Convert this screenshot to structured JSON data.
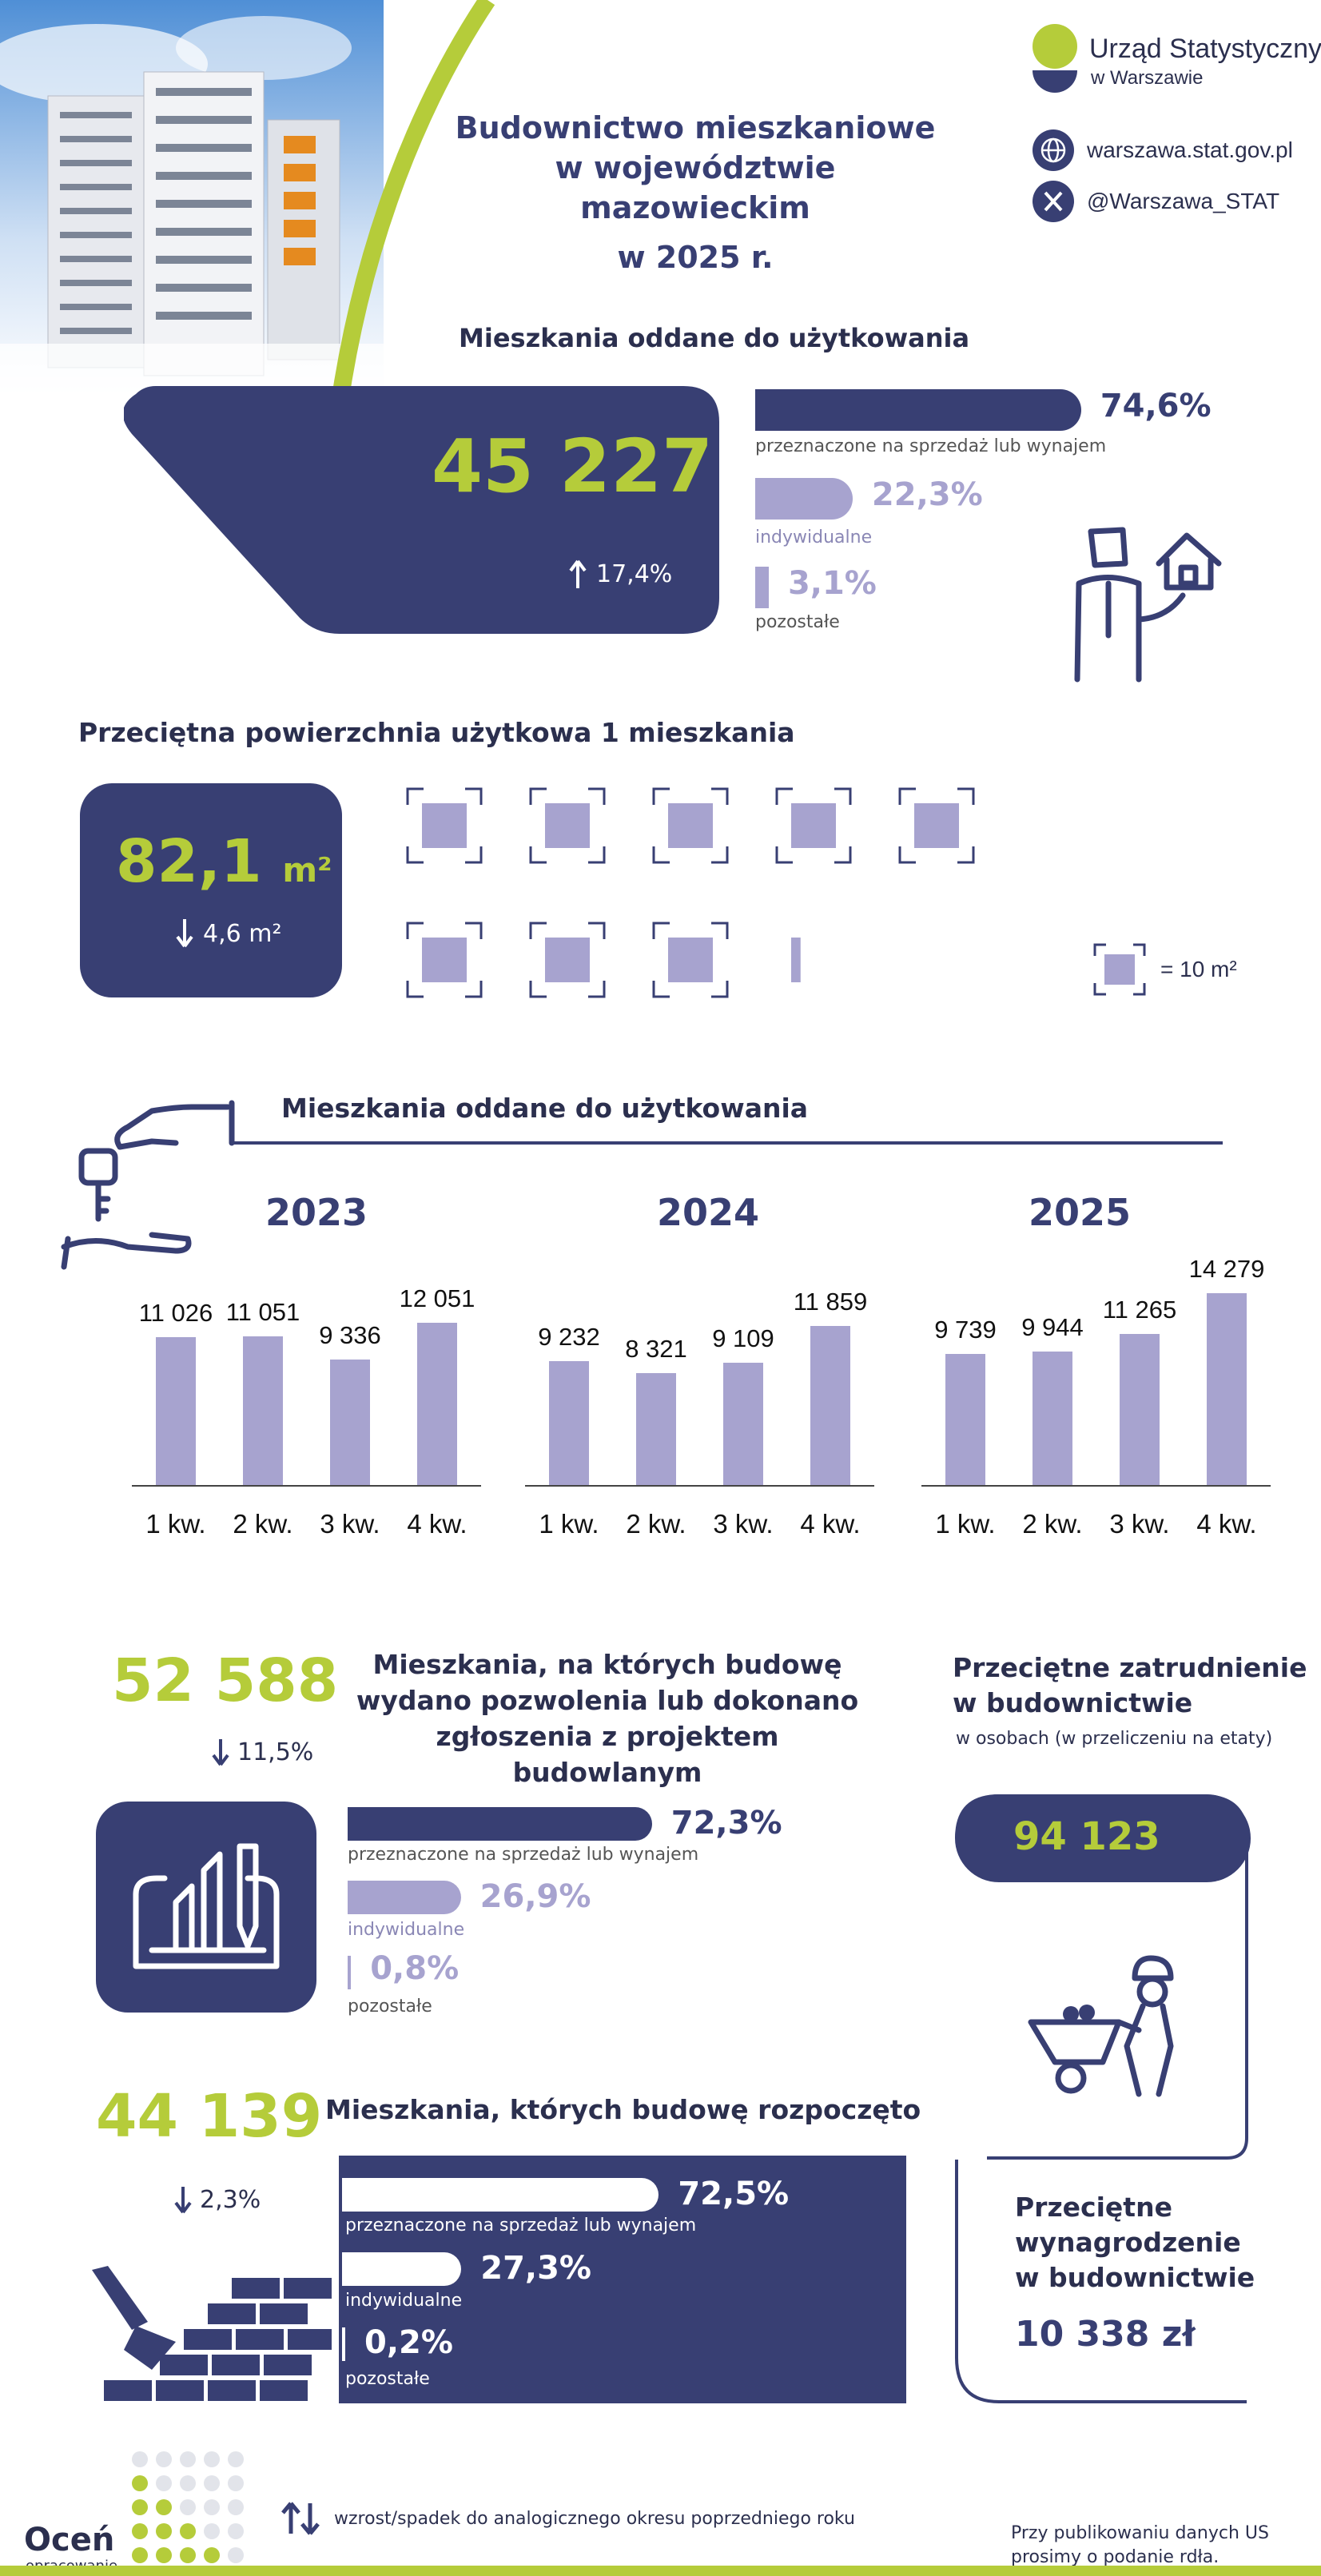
{
  "header": {
    "title_line1": "Budownictwo mieszkaniowe",
    "title_line2": "w województwie mazowieckim",
    "title_line3": "w 2025 r.",
    "org_line1": "Urząd Statystyczny",
    "org_line2": "w Warszawie",
    "website": "warszawa.stat.gov.pl",
    "twitter": "@Warszawa_STAT"
  },
  "completed": {
    "heading": "Mieszkania oddane do użytkowania",
    "value": "45 227",
    "change": "17,4%",
    "shares": [
      {
        "pct": "74,6%",
        "label": "przeznaczone na sprzedaż lub wynajem",
        "value": 74.6
      },
      {
        "pct": "22,3%",
        "label": "indywidualne",
        "value": 22.3
      },
      {
        "pct": "3,1%",
        "label": "pozostałe",
        "value": 3.1
      }
    ]
  },
  "area": {
    "heading": "Przeciętna powierzchnia użytkowa 1 mieszkania",
    "value": "82,1",
    "unit": "m²",
    "change": "4,6 m²",
    "legend": "= 10 m²",
    "units_of_10": 8.21
  },
  "quarterly": {
    "heading": "Mieszkania oddane do użytkowania",
    "years": [
      {
        "year": "2023",
        "values": [
          11026,
          11051,
          9336,
          12051
        ],
        "labels": [
          "11 026",
          "11 051",
          "9 336",
          "12 051"
        ]
      },
      {
        "year": "2024",
        "values": [
          9232,
          8321,
          9109,
          11859
        ],
        "labels": [
          "9 232",
          "8 321",
          "9 109",
          "11 859"
        ]
      },
      {
        "year": "2025",
        "values": [
          9739,
          9944,
          11265,
          14279
        ],
        "labels": [
          "9 739",
          "9 944",
          "11 265",
          "14 279"
        ]
      }
    ],
    "quarters": [
      "1 kw.",
      "2 kw.",
      "3 kw.",
      "4 kw."
    ]
  },
  "permits": {
    "value": "52 588",
    "change": "11,5%",
    "heading_line1": "Mieszkania, na których budowę",
    "heading_line2": "wydano pozwolenia lub dokonano",
    "heading_line3": "zgłoszenia z projektem budowlanym",
    "shares": [
      {
        "pct": "72,3%",
        "label": "przeznaczone na sprzedaż lub wynajem",
        "value": 72.3
      },
      {
        "pct": "26,9%",
        "label": "indywidualne",
        "value": 26.9
      },
      {
        "pct": "0,8%",
        "label": "pozostałe",
        "value": 0.8
      }
    ]
  },
  "started": {
    "value": "44 139",
    "change": "2,3%",
    "heading": "Mieszkania, których budowę rozpoczęto",
    "shares": [
      {
        "pct": "72,5%",
        "label": "przeznaczone na sprzedaż lub wynajem",
        "value": 72.5
      },
      {
        "pct": "27,3%",
        "label": "indywidualne",
        "value": 27.3
      },
      {
        "pct": "0,2%",
        "label": "pozostałe",
        "value": 0.2
      }
    ]
  },
  "employment": {
    "heading_line1": "Przeciętne zatrudnienie",
    "heading_line2": "w budownictwie",
    "sub": "w osobach (w przeliczeniu na etaty)",
    "value": "94 123"
  },
  "salary": {
    "heading_line1": "Przeciętne",
    "heading_line2": "wynagrodzenie",
    "heading_line3": "w budownictwie",
    "value": "10 338 zł"
  },
  "footer": {
    "rate_line1": "Oceń",
    "rate_line2": "opracowanie",
    "legend": "wzrost/spadek do analogicznego okresu poprzedniego roku",
    "note_line1": "Przy publikowaniu danych US",
    "note_line2": "prosimy o podanie rdła."
  },
  "colors": {
    "navy": "#383f73",
    "lime": "#b5cc3a",
    "lavender": "#a7a3cf"
  }
}
